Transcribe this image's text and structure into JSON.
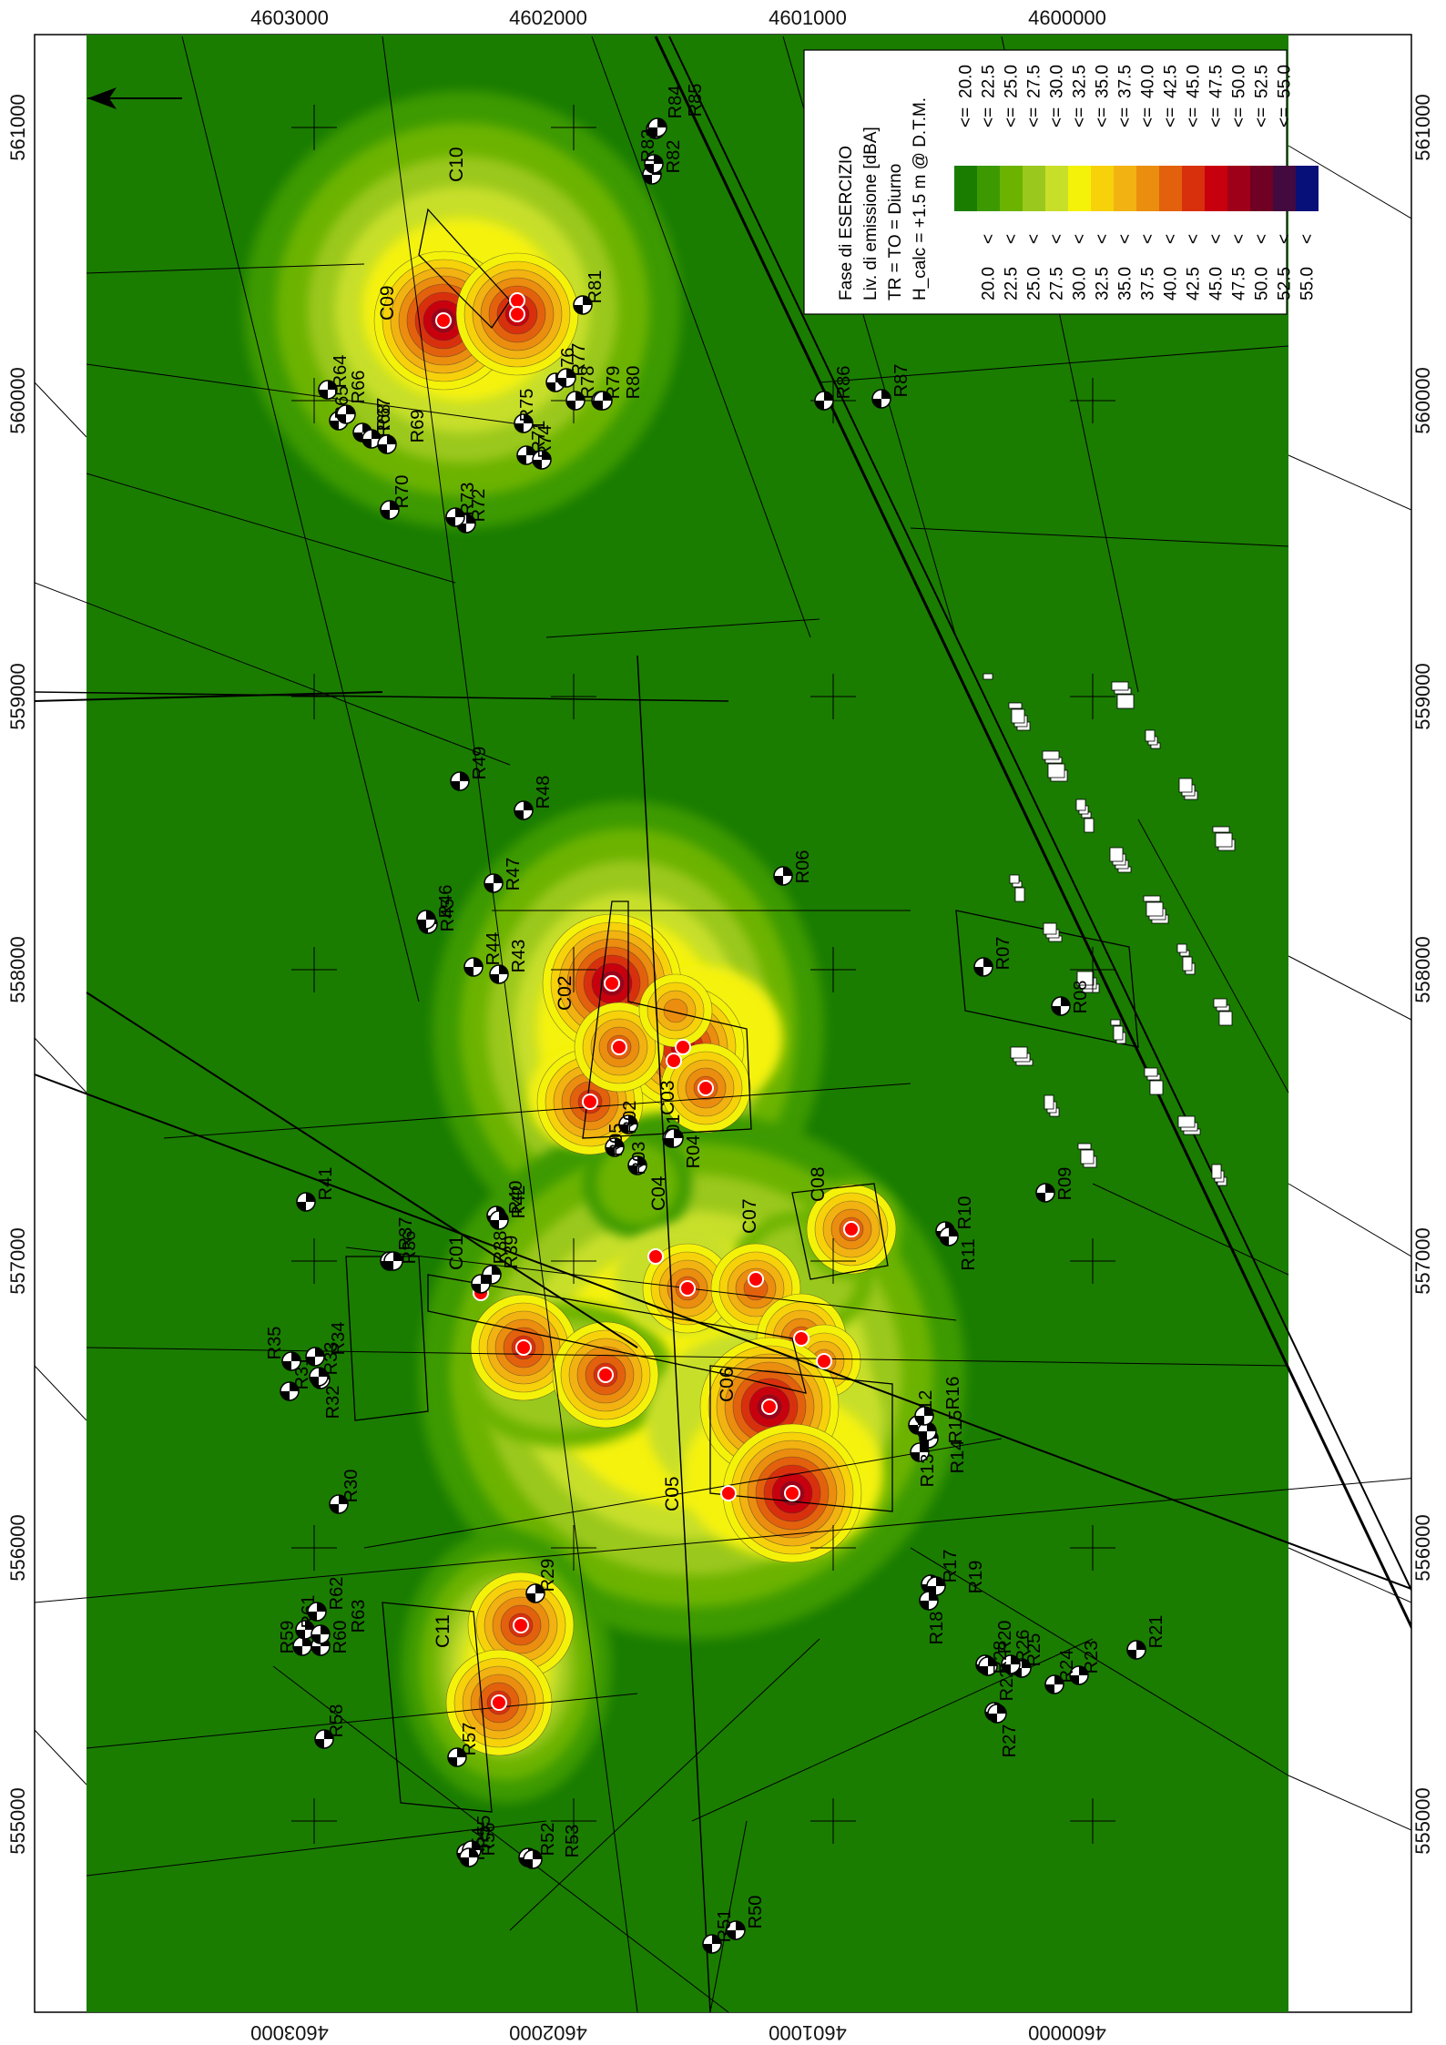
{
  "map": {
    "background_color": "#1a7d00",
    "outside_color": "#ffffff"
  },
  "legend": {
    "title_lines": [
      "Fase di ESERCIZIO",
      "Liv. di emissione [dBA]",
      "TR = TO = Diurno",
      "H_calc = +1.5 m @ D.T.M."
    ],
    "classes": [
      {
        "lower": "",
        "op1": "",
        "op2": "<=",
        "upper": "20.0",
        "color": "#1a7d00"
      },
      {
        "lower": "20.0",
        "op1": "<",
        "op2": "<=",
        "upper": "22.5",
        "color": "#3c9a00"
      },
      {
        "lower": "22.5",
        "op1": "<",
        "op2": "<=",
        "upper": "25.0",
        "color": "#6cb300"
      },
      {
        "lower": "25.0",
        "op1": "<",
        "op2": "<=",
        "upper": "27.5",
        "color": "#9bc81d"
      },
      {
        "lower": "27.5",
        "op1": "<",
        "op2": "<=",
        "upper": "30.0",
        "color": "#c8df2a"
      },
      {
        "lower": "30.0",
        "op1": "<",
        "op2": "<=",
        "upper": "32.5",
        "color": "#f5f20a"
      },
      {
        "lower": "32.5",
        "op1": "<",
        "op2": "<=",
        "upper": "35.0",
        "color": "#f7d20a"
      },
      {
        "lower": "35.0",
        "op1": "<",
        "op2": "<=",
        "upper": "37.5",
        "color": "#f2b211"
      },
      {
        "lower": "37.5",
        "op1": "<",
        "op2": "<=",
        "upper": "40.0",
        "color": "#eb8d0f"
      },
      {
        "lower": "40.0",
        "op1": "<",
        "op2": "<=",
        "upper": "42.5",
        "color": "#e3610d"
      },
      {
        "lower": "42.5",
        "op1": "<",
        "op2": "<=",
        "upper": "45.0",
        "color": "#d8300d"
      },
      {
        "lower": "45.0",
        "op1": "<",
        "op2": "<=",
        "upper": "47.5",
        "color": "#c8000e"
      },
      {
        "lower": "47.5",
        "op1": "<",
        "op2": "<=",
        "upper": "50.0",
        "color": "#9e0019"
      },
      {
        "lower": "50.0",
        "op1": "<",
        "op2": "<=",
        "upper": "52.5",
        "color": "#700024"
      },
      {
        "lower": "52.5",
        "op1": "<",
        "op2": "<=",
        "upper": "55.0",
        "color": "#420a3f"
      },
      {
        "lower": "55.0",
        "op1": "<",
        "op2": "",
        "upper": "",
        "color": "#071078"
      }
    ]
  },
  "axes": {
    "top_ticks": [
      "4603000",
      "4602000",
      "4601000",
      "4600000"
    ],
    "bottom_ticks": [
      "4603000",
      "4602000",
      "4601000",
      "4600000"
    ],
    "left_ticks": [
      "561000",
      "560000",
      "559000",
      "558000",
      "557000",
      "556000",
      "555000"
    ],
    "right_ticks": [
      "561000",
      "560000",
      "559000",
      "558000",
      "557000",
      "556000",
      "555000"
    ]
  },
  "sources": [
    "C01",
    "C02",
    "C03",
    "C04",
    "C05",
    "C06",
    "C07",
    "C08",
    "C09",
    "C10",
    "C11"
  ],
  "receivers": [
    "R01",
    "R02",
    "R03",
    "R04",
    "R05",
    "R06",
    "R07",
    "R08",
    "R09",
    "R10",
    "R11",
    "R12",
    "R13",
    "R14",
    "R15",
    "R16",
    "R17",
    "R18",
    "R19",
    "R20",
    "R21",
    "R22",
    "R23",
    "R24",
    "R25",
    "R26",
    "R27",
    "R28",
    "R29",
    "R30",
    "R31",
    "R32",
    "R33",
    "R34",
    "R35",
    "R36",
    "R37",
    "R38",
    "R39",
    "R40",
    "R41",
    "R42",
    "R43",
    "R44",
    "R45",
    "R46",
    "R47",
    "R48",
    "R49",
    "R50",
    "R51",
    "R52",
    "R53",
    "R54",
    "R55",
    "R56",
    "R57",
    "R58",
    "R59",
    "R60",
    "R61",
    "R62",
    "R63",
    "R64",
    "R65",
    "R66",
    "R67",
    "R68",
    "R69",
    "R70",
    "R71",
    "R72",
    "R73",
    "R74",
    "R75",
    "R76",
    "R77",
    "R78",
    "R79",
    "R80",
    "R81",
    "R82",
    "R83",
    "R84",
    "R85",
    "R86",
    "R87"
  ]
}
